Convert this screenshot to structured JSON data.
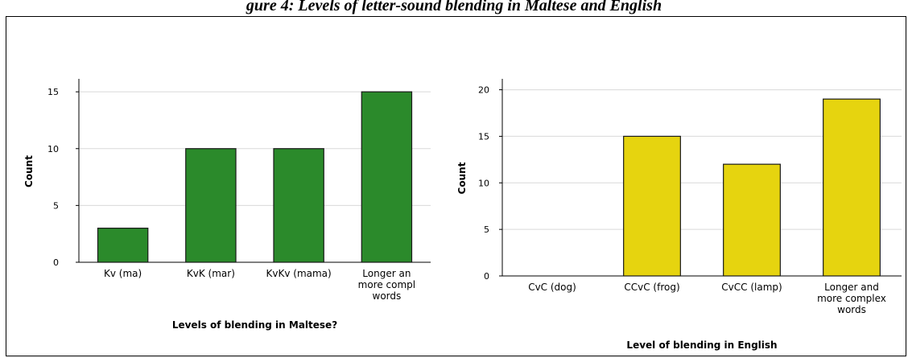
{
  "figure_caption": "gure 4: Levels of letter-sound blending in Maltese and English",
  "chart_data": [
    {
      "type": "bar",
      "categories": [
        "Kv (ma)",
        "KvK (mar)",
        "KvKv (mama)",
        "Longer and more complex words"
      ],
      "category_lines": [
        [
          "Kv (ma)"
        ],
        [
          "KvK (mar)"
        ],
        [
          "KvKv (mama)"
        ],
        [
          "Longer an",
          "more compl",
          "words"
        ]
      ],
      "values": [
        3,
        10,
        10,
        15
      ],
      "xlabel": "Levels of blending in Maltese?",
      "ylabel": "Count",
      "ylim": [
        0,
        16
      ],
      "yticks": [
        0,
        5,
        10,
        15
      ],
      "grid": true,
      "colors": {
        "bar": "#2b8a2b",
        "edge": "#1a1a1a",
        "grid": "#d9d9d9"
      }
    },
    {
      "type": "bar",
      "categories": [
        "CvC (dog)",
        "CCvC (frog)",
        "CvCC (lamp)",
        "Longer and more complex words"
      ],
      "category_lines": [
        [
          "CvC (dog)"
        ],
        [
          "CCvC (frog)"
        ],
        [
          "CvCC (lamp)"
        ],
        [
          "Longer and",
          "more complex",
          "words"
        ]
      ],
      "values": [
        0,
        15,
        12,
        19
      ],
      "xlabel": "Level of blending in English",
      "ylabel": "Count",
      "ylim": [
        0,
        21
      ],
      "yticks": [
        0,
        5,
        10,
        15,
        20
      ],
      "grid": true,
      "colors": {
        "bar": "#e6d40f",
        "edge": "#1a1a1a",
        "grid": "#d9d9d9"
      }
    }
  ]
}
